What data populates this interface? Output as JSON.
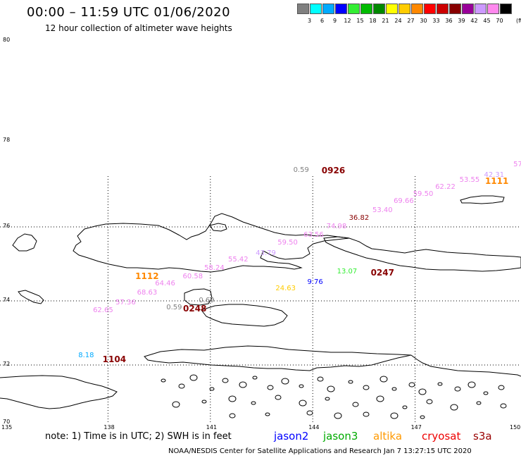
{
  "title": "00:00 – 11:59 UTC 01/06/2020",
  "subtitle": "12 hour collection of altimeter wave heights",
  "legend": {
    "unit": "(ft)",
    "bins": [
      {
        "label": "3",
        "color": "#808080"
      },
      {
        "label": "6",
        "color": "#00ffff"
      },
      {
        "label": "9",
        "color": "#00aaff"
      },
      {
        "label": "12",
        "color": "#0000ff"
      },
      {
        "label": "15",
        "color": "#33ee33"
      },
      {
        "label": "18",
        "color": "#00bb00"
      },
      {
        "label": "21",
        "color": "#008800"
      },
      {
        "label": "24",
        "color": "#ffff00"
      },
      {
        "label": "27",
        "color": "#ffcc00"
      },
      {
        "label": "30",
        "color": "#ff8800"
      },
      {
        "label": "33",
        "color": "#ff0000"
      },
      {
        "label": "36",
        "color": "#cc0000"
      },
      {
        "label": "39",
        "color": "#880000"
      },
      {
        "label": "42",
        "color": "#990099"
      },
      {
        "label": "45",
        "color": "#cc99ff"
      },
      {
        "label": "70",
        "color": "#ff88ee"
      },
      {
        "label": "",
        "color": "#000000"
      }
    ]
  },
  "map": {
    "lat_labels": [
      "80",
      "78",
      "76",
      "74",
      "72",
      "70"
    ],
    "lon_labels": [
      "135",
      "138",
      "141",
      "144",
      "147",
      "150"
    ]
  },
  "wave_labels": [
    {
      "text": "57",
      "lon": 149.88,
      "lat": 77.42,
      "color": "#ee82ee"
    },
    {
      "text": "42.31",
      "lon": 149.02,
      "lat": 77.18,
      "color": "#cc99ff"
    },
    {
      "text": "53.55",
      "lon": 148.3,
      "lat": 77.07,
      "color": "#ee82ee"
    },
    {
      "text": "62.22",
      "lon": 147.59,
      "lat": 76.9,
      "color": "#ee82ee"
    },
    {
      "text": "59.50",
      "lon": 146.94,
      "lat": 76.73,
      "color": "#ee82ee"
    },
    {
      "text": "69.66",
      "lon": 146.37,
      "lat": 76.57,
      "color": "#ee82ee"
    },
    {
      "text": "53.40",
      "lon": 145.75,
      "lat": 76.36,
      "color": "#ee82ee"
    },
    {
      "text": "36.82",
      "lon": 145.06,
      "lat": 76.18,
      "color": "#880000"
    },
    {
      "text": "74.98",
      "lon": 144.4,
      "lat": 75.98,
      "color": "#ee82ee"
    },
    {
      "text": "63.56",
      "lon": 143.73,
      "lat": 75.76,
      "color": "#ee82ee"
    },
    {
      "text": "59.50",
      "lon": 142.97,
      "lat": 75.54,
      "color": "#ee82ee"
    },
    {
      "text": "43.79",
      "lon": 142.33,
      "lat": 75.26,
      "color": "#cc99ff"
    },
    {
      "text": "55.42",
      "lon": 141.52,
      "lat": 75.08,
      "color": "#ee82ee"
    },
    {
      "text": "58.24",
      "lon": 140.82,
      "lat": 74.86,
      "color": "#ee82ee"
    },
    {
      "text": "60.58",
      "lon": 140.19,
      "lat": 74.62,
      "color": "#ee82ee"
    },
    {
      "text": "64.46",
      "lon": 139.38,
      "lat": 74.43,
      "color": "#ee82ee"
    },
    {
      "text": "68.63",
      "lon": 138.85,
      "lat": 74.2,
      "color": "#ee82ee"
    },
    {
      "text": "57.36",
      "lon": 138.22,
      "lat": 73.92,
      "color": "#ee82ee"
    },
    {
      "text": "62.65",
      "lon": 137.56,
      "lat": 73.67,
      "color": "#ee82ee"
    },
    {
      "text": "0.59",
      "lon": 143.43,
      "lat": 77.3,
      "color": "#808080"
    },
    {
      "text": "13.07",
      "lon": 144.71,
      "lat": 74.77,
      "color": "#33ee33"
    },
    {
      "text": "9.76",
      "lon": 143.84,
      "lat": 74.48,
      "color": "#0000ff"
    },
    {
      "text": "24.63",
      "lon": 142.91,
      "lat": 74.3,
      "color": "#ffcc00"
    },
    {
      "text": "0.69",
      "lon": 140.66,
      "lat": 73.97,
      "color": "#808080"
    },
    {
      "text": "0.59",
      "lon": 139.71,
      "lat": 73.76,
      "color": "#808080"
    },
    {
      "text": "8.18",
      "lon": 137.13,
      "lat": 72.26,
      "color": "#00aaff"
    }
  ],
  "time_labels": [
    {
      "text": "0926",
      "lon": 144.26,
      "lat": 77.31,
      "color": "#880000"
    },
    {
      "text": "1111",
      "lon": 149.05,
      "lat": 77.07,
      "color": "#ff8800"
    },
    {
      "text": "1112",
      "lon": 138.8,
      "lat": 74.67,
      "color": "#ff8800"
    },
    {
      "text": "0247",
      "lon": 145.7,
      "lat": 74.76,
      "color": "#880000"
    },
    {
      "text": "0248",
      "lon": 140.2,
      "lat": 73.76,
      "color": "#880000"
    },
    {
      "text": "1104",
      "lon": 137.84,
      "lat": 72.17,
      "color": "#880000"
    }
  ],
  "note": "note: 1) Time is in UTC; 2) SWH is in feet",
  "satellites": [
    {
      "name": "jason2",
      "color": "#0000ff"
    },
    {
      "name": "jason3",
      "color": "#00aa00"
    },
    {
      "name": "altika",
      "color": "#ff9900"
    },
    {
      "name": "cryosat",
      "color": "#ee0000"
    },
    {
      "name": "s3a",
      "color": "#990000"
    }
  ],
  "credit": "NOAA/NESDIS Center for Satellite Applications and Research   Jan  7 13:27:15 UTC 2020"
}
